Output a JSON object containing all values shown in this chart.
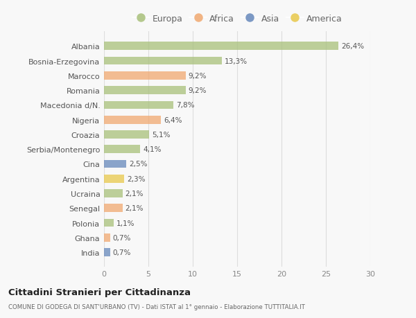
{
  "categories": [
    "Albania",
    "Bosnia-Erzegovina",
    "Marocco",
    "Romania",
    "Macedonia d/N.",
    "Nigeria",
    "Croazia",
    "Serbia/Montenegro",
    "Cina",
    "Argentina",
    "Ucraina",
    "Senegal",
    "Polonia",
    "Ghana",
    "India"
  ],
  "values": [
    26.4,
    13.3,
    9.2,
    9.2,
    7.8,
    6.4,
    5.1,
    4.1,
    2.5,
    2.3,
    2.1,
    2.1,
    1.1,
    0.7,
    0.7
  ],
  "labels": [
    "26,4%",
    "13,3%",
    "9,2%",
    "9,2%",
    "7,8%",
    "6,4%",
    "5,1%",
    "4,1%",
    "2,5%",
    "2,3%",
    "2,1%",
    "2,1%",
    "1,1%",
    "0,7%",
    "0,7%"
  ],
  "colors": [
    "#a8c07a",
    "#a8c07a",
    "#f0a870",
    "#a8c07a",
    "#a8c07a",
    "#f0a870",
    "#a8c07a",
    "#a8c07a",
    "#6688bb",
    "#e8c84a",
    "#a8c07a",
    "#f0a870",
    "#a8c07a",
    "#f0a870",
    "#6688bb"
  ],
  "legend_labels": [
    "Europa",
    "Africa",
    "Asia",
    "America"
  ],
  "legend_colors": [
    "#a8c07a",
    "#f0a870",
    "#6688bb",
    "#e8c84a"
  ],
  "xlim": [
    0,
    30
  ],
  "xticks": [
    0,
    5,
    10,
    15,
    20,
    25,
    30
  ],
  "title": "Cittadini Stranieri per Cittadinanza",
  "subtitle": "COMUNE DI GODEGA DI SANT'URBANO (TV) - Dati ISTAT al 1° gennaio - Elaborazione TUTTITALIA.IT",
  "bg_color": "#f8f8f8",
  "bar_height": 0.55
}
